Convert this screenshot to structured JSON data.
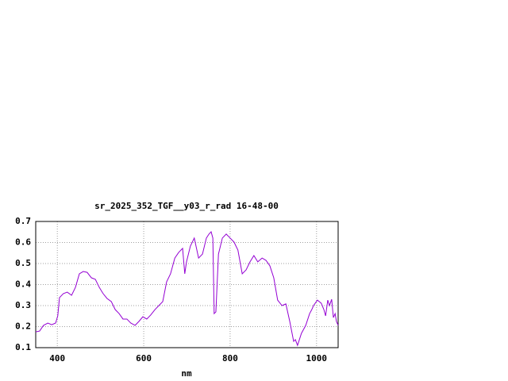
{
  "chart_data": {
    "type": "line",
    "title": "sr_2025_352_TGF__y03_r_rad 16-48-00",
    "x_label": "nm",
    "xlim": [
      350,
      1050
    ],
    "xticks": [
      400,
      600,
      800,
      1000
    ],
    "ylim": [
      0.1,
      0.7
    ],
    "yticks": [
      0.1,
      0.2,
      0.3,
      0.4,
      0.5,
      0.6,
      0.7
    ],
    "grid": true,
    "x": [
      350,
      359,
      368,
      378,
      387,
      396,
      401,
      405,
      414,
      423,
      433,
      442,
      451,
      460,
      469,
      479,
      488,
      497,
      506,
      515,
      525,
      534,
      543,
      552,
      561,
      570,
      580,
      589,
      598,
      607,
      616,
      626,
      635,
      644,
      653,
      662,
      672,
      681,
      690,
      695,
      699,
      708,
      717,
      727,
      736,
      745,
      751,
      756,
      760,
      763,
      767,
      773,
      782,
      791,
      800,
      809,
      818,
      828,
      837,
      846,
      855,
      864,
      874,
      883,
      892,
      901,
      910,
      920,
      929,
      938,
      947,
      951,
      956,
      965,
      975,
      984,
      989,
      993,
      1002,
      1011,
      1017,
      1021,
      1026,
      1030,
      1035,
      1039,
      1043,
      1046,
      1050
    ],
    "series": [
      {
        "color": "#9400d3",
        "values": [
          0.175,
          0.179,
          0.206,
          0.217,
          0.209,
          0.217,
          0.251,
          0.338,
          0.357,
          0.364,
          0.349,
          0.387,
          0.451,
          0.462,
          0.458,
          0.432,
          0.425,
          0.387,
          0.357,
          0.334,
          0.319,
          0.281,
          0.262,
          0.236,
          0.236,
          0.217,
          0.206,
          0.225,
          0.247,
          0.236,
          0.255,
          0.281,
          0.3,
          0.319,
          0.413,
          0.451,
          0.526,
          0.553,
          0.572,
          0.451,
          0.508,
          0.583,
          0.621,
          0.526,
          0.545,
          0.621,
          0.64,
          0.651,
          0.621,
          0.262,
          0.27,
          0.545,
          0.621,
          0.64,
          0.621,
          0.602,
          0.564,
          0.451,
          0.47,
          0.508,
          0.538,
          0.508,
          0.526,
          0.515,
          0.489,
          0.432,
          0.326,
          0.3,
          0.308,
          0.225,
          0.13,
          0.138,
          0.111,
          0.168,
          0.206,
          0.262,
          0.281,
          0.3,
          0.326,
          0.311,
          0.281,
          0.251,
          0.326,
          0.3,
          0.33,
          0.243,
          0.262,
          0.225,
          0.206
        ]
      }
    ]
  }
}
